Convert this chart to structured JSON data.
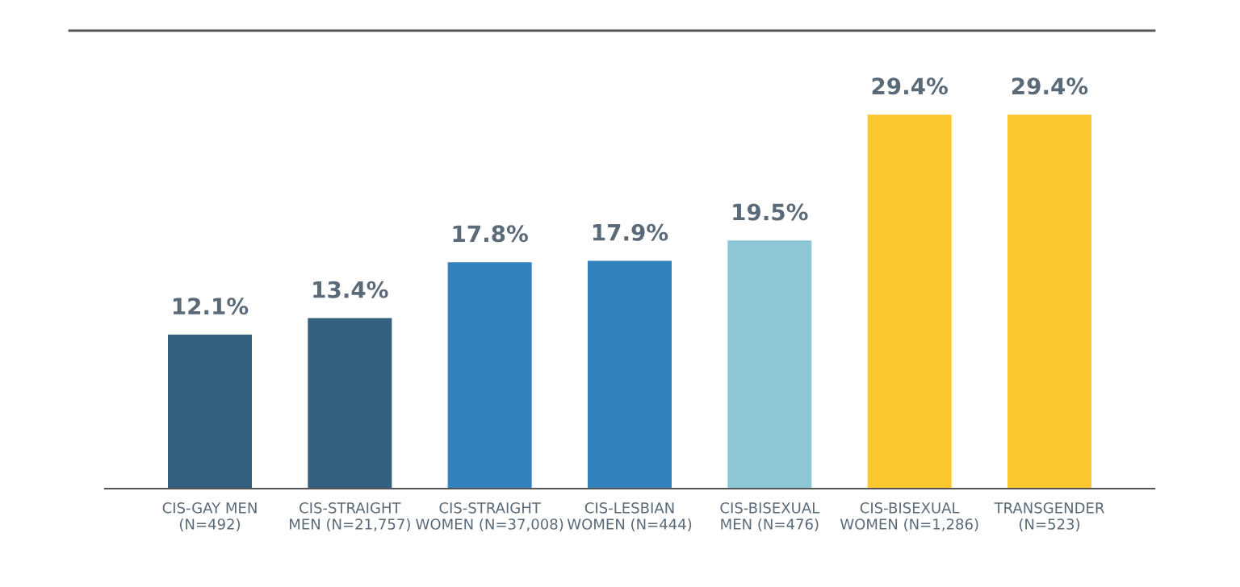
{
  "chart_data": {
    "type": "bar",
    "categories": [
      "CIS-GAY MEN\n(N=492)",
      "CIS-STRAIGHT\nMEN (N=21,757)",
      "CIS-STRAIGHT\nWOMEN (N=37,008)",
      "CIS-LESBIAN\nWOMEN (N=444)",
      "CIS-BISEXUAL\nMEN (N=476)",
      "CIS-BISEXUAL\nWOMEN (N=1,286)",
      "TRANSGENDER\n(N=523)"
    ],
    "values": [
      12.1,
      13.4,
      17.8,
      17.9,
      19.5,
      29.4,
      29.4
    ],
    "colors": [
      "#34607f",
      "#34607f",
      "#3182bd",
      "#3182bd",
      "#8dc6d4",
      "#fdc72f",
      "#fdc72f"
    ],
    "value_labels": [
      "12.1%",
      "13.4%",
      "17.8%",
      "17.9%",
      "19.5%",
      "29.4%",
      "29.4%"
    ],
    "ylim": [
      0,
      36
    ],
    "tick_labels": "x",
    "grid": false,
    "legend": false
  }
}
